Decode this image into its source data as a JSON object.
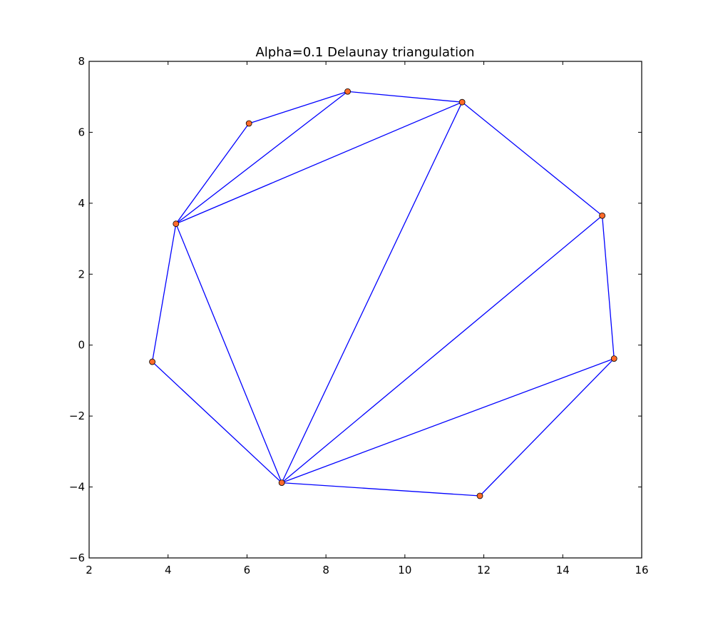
{
  "chart_data": {
    "type": "scatter",
    "title": "Alpha=0.1 Delaunay triangulation",
    "xlabel": "",
    "ylabel": "",
    "xlim": [
      2,
      16
    ],
    "ylim": [
      -6,
      8
    ],
    "xticks": [
      2,
      4,
      6,
      8,
      10,
      12,
      14,
      16
    ],
    "yticks": [
      -6,
      -4,
      -2,
      0,
      2,
      4,
      6,
      8
    ],
    "xtick_labels": [
      "2",
      "4",
      "6",
      "8",
      "10",
      "12",
      "14",
      "16"
    ],
    "ytick_labels": [
      "−6",
      "−4",
      "−2",
      "0",
      "2",
      "4",
      "6",
      "8"
    ],
    "grid": false,
    "points": [
      {
        "x": 8.55,
        "y": 7.15
      },
      {
        "x": 11.45,
        "y": 6.85
      },
      {
        "x": 6.05,
        "y": 6.25
      },
      {
        "x": 4.2,
        "y": 3.42
      },
      {
        "x": 15.0,
        "y": 3.65
      },
      {
        "x": 3.6,
        "y": -0.47
      },
      {
        "x": 15.3,
        "y": -0.38
      },
      {
        "x": 6.88,
        "y": -3.88
      },
      {
        "x": 11.9,
        "y": -4.25
      }
    ],
    "edges": [
      [
        0,
        1
      ],
      [
        0,
        2
      ],
      [
        0,
        3
      ],
      [
        2,
        3
      ],
      [
        1,
        3
      ],
      [
        1,
        7
      ],
      [
        1,
        4
      ],
      [
        4,
        6
      ],
      [
        4,
        7
      ],
      [
        6,
        7
      ],
      [
        6,
        8
      ],
      [
        7,
        8
      ],
      [
        3,
        7
      ],
      [
        3,
        5
      ],
      [
        5,
        7
      ]
    ],
    "colors": {
      "edge": "#0000ff",
      "point": "#ff6a2a"
    }
  }
}
